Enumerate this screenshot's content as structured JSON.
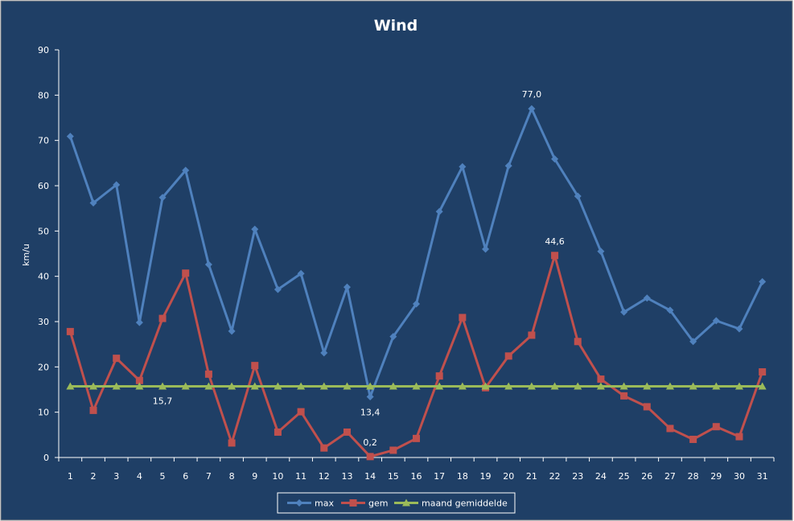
{
  "chart_data": {
    "type": "line",
    "title": "Wind",
    "xlabel": "",
    "ylabel": "km/u",
    "ylim": [
      0,
      90
    ],
    "yticks": [
      0,
      10,
      20,
      30,
      40,
      50,
      60,
      70,
      80,
      90
    ],
    "grid": false,
    "legend_position": "bottom",
    "x": [
      1,
      2,
      3,
      4,
      5,
      6,
      7,
      8,
      9,
      10,
      11,
      12,
      13,
      14,
      15,
      16,
      17,
      18,
      19,
      20,
      21,
      22,
      23,
      24,
      25,
      26,
      27,
      28,
      29,
      30,
      31
    ],
    "series": [
      {
        "name": "max",
        "color": "#4f81bd",
        "marker": "diamond",
        "values": [
          70.9,
          56.2,
          60.2,
          29.8,
          57.4,
          63.4,
          42.6,
          27.9,
          50.4,
          37.1,
          40.6,
          23.1,
          37.6,
          13.4,
          26.7,
          33.9,
          54.3,
          64.2,
          46.0,
          64.4,
          77.0,
          65.9,
          57.7,
          45.5,
          32.1,
          35.2,
          32.5,
          25.6,
          30.2,
          28.4,
          38.8
        ]
      },
      {
        "name": "gem",
        "color": "#c0504d",
        "marker": "square",
        "values": [
          27.8,
          10.4,
          21.9,
          17.0,
          30.7,
          40.7,
          18.4,
          3.2,
          20.3,
          5.6,
          10.1,
          2.1,
          5.6,
          0.2,
          1.6,
          4.2,
          18.0,
          30.9,
          15.4,
          22.4,
          27.0,
          44.6,
          25.6,
          17.3,
          13.6,
          11.2,
          6.4,
          4.0,
          6.8,
          4.6,
          18.9
        ]
      },
      {
        "name": "maand gemiddelde",
        "color": "#9bbb59",
        "marker": "triangle",
        "values": [
          15.7,
          15.7,
          15.7,
          15.7,
          15.7,
          15.7,
          15.7,
          15.7,
          15.7,
          15.7,
          15.7,
          15.7,
          15.7,
          15.7,
          15.7,
          15.7,
          15.7,
          15.7,
          15.7,
          15.7,
          15.7,
          15.7,
          15.7,
          15.7,
          15.7,
          15.7,
          15.7,
          15.7,
          15.7,
          15.7,
          15.7
        ]
      }
    ],
    "annotations": [
      {
        "series": 0,
        "index": 20,
        "text": "77,0"
      },
      {
        "series": 1,
        "index": 21,
        "text": "44,6"
      },
      {
        "series": 0,
        "index": 13,
        "text": "13,4"
      },
      {
        "series": 1,
        "index": 13,
        "text": "0,2"
      },
      {
        "series": 2,
        "index": 4,
        "text": "15,7"
      }
    ],
    "background_color": "#1f3f66",
    "axis_color": "#ffffff"
  }
}
